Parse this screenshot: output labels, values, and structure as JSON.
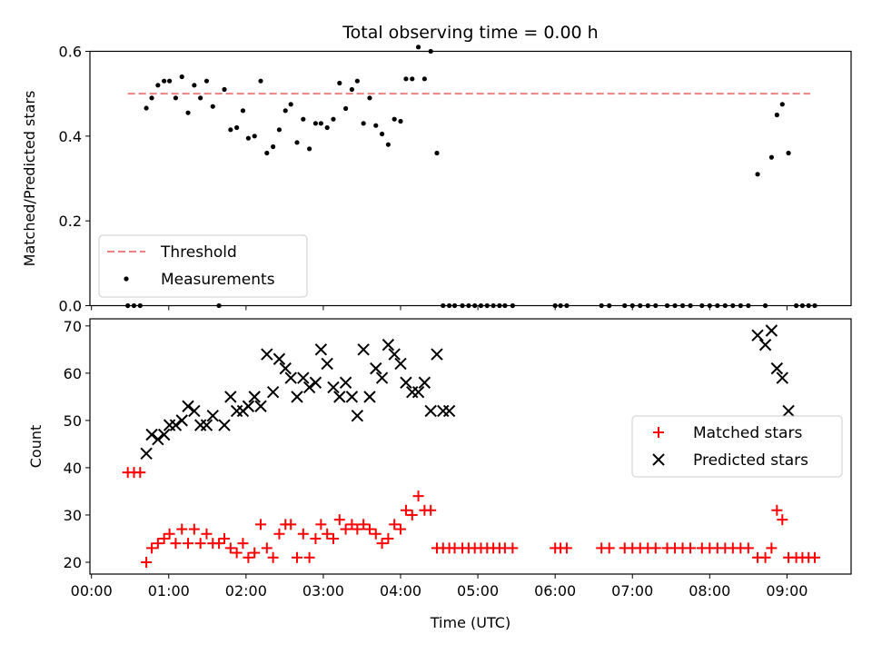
{
  "title": "Total observing time = 0.00 h",
  "x_axis": {
    "label": "Time (UTC)",
    "ticks": [
      {
        "v": 0,
        "label": "00:00"
      },
      {
        "v": 1,
        "label": "01:00"
      },
      {
        "v": 2,
        "label": "02:00"
      },
      {
        "v": 3,
        "label": "03:00"
      },
      {
        "v": 4,
        "label": "04:00"
      },
      {
        "v": 5,
        "label": "05:00"
      },
      {
        "v": 6,
        "label": "06:00"
      },
      {
        "v": 7,
        "label": "07:00"
      },
      {
        "v": 8,
        "label": "08:00"
      },
      {
        "v": 9,
        "label": "09:00"
      }
    ],
    "range_hours": [
      -0.02,
      9.83
    ]
  },
  "chart_data": [
    {
      "type": "scatter",
      "ylabel": "Matched/Predicted stars",
      "ylim": [
        0.0,
        0.6
      ],
      "yticks": [
        {
          "v": 0.0,
          "label": "0.0"
        },
        {
          "v": 0.2,
          "label": "0.2"
        },
        {
          "v": 0.4,
          "label": "0.4"
        },
        {
          "v": 0.6,
          "label": "0.6"
        }
      ],
      "legend_position": "bottom-left",
      "threshold": {
        "name": "Threshold",
        "y": 0.5,
        "x": [
          0.47,
          9.3
        ],
        "color": "#f08080"
      },
      "series": [
        {
          "name": "Measurements",
          "color": "#000000",
          "x": [
            0.47,
            0.55,
            0.63,
            0.71,
            0.78,
            0.86,
            0.94,
            1.01,
            1.09,
            1.17,
            1.25,
            1.33,
            1.41,
            1.49,
            1.57,
            1.65,
            1.72,
            1.8,
            1.88,
            1.96,
            2.03,
            2.11,
            2.19,
            2.27,
            2.35,
            2.43,
            2.51,
            2.58,
            2.66,
            2.74,
            2.82,
            2.9,
            2.97,
            3.05,
            3.13,
            3.21,
            3.29,
            3.37,
            3.44,
            3.52,
            3.6,
            3.68,
            3.76,
            3.84,
            3.92,
            4.0,
            4.07,
            4.15,
            4.23,
            4.31,
            4.39,
            4.47,
            4.55,
            4.63,
            4.7,
            4.8,
            4.88,
            4.96,
            5.04,
            5.12,
            5.2,
            5.28,
            5.35,
            5.45,
            6.0,
            6.07,
            6.15,
            6.6,
            6.7,
            6.9,
            7.0,
            7.1,
            7.2,
            7.3,
            7.45,
            7.55,
            7.65,
            7.75,
            7.9,
            8.0,
            8.1,
            8.2,
            8.3,
            8.4,
            8.5,
            8.62,
            8.72,
            8.8,
            8.87,
            8.94,
            9.02,
            9.12,
            9.2,
            9.28,
            9.36
          ],
          "y": [
            0.0,
            0.0,
            0.0,
            0.466,
            0.49,
            0.52,
            0.53,
            0.53,
            0.49,
            0.54,
            0.455,
            0.52,
            0.49,
            0.53,
            0.47,
            0.0,
            0.51,
            0.415,
            0.42,
            0.46,
            0.395,
            0.4,
            0.53,
            0.36,
            0.375,
            0.415,
            0.46,
            0.475,
            0.385,
            0.44,
            0.37,
            0.43,
            0.43,
            0.42,
            0.44,
            0.525,
            0.465,
            0.51,
            0.53,
            0.43,
            0.49,
            0.425,
            0.405,
            0.38,
            0.44,
            0.435,
            0.535,
            0.535,
            0.61,
            0.535,
            0.6,
            0.36,
            0.0,
            0.0,
            0.0,
            0.0,
            0.0,
            0.0,
            0.0,
            0.0,
            0.0,
            0.0,
            0.0,
            0.0,
            0.0,
            0.0,
            0.0,
            0.0,
            0.0,
            0.0,
            0.0,
            0.0,
            0.0,
            0.0,
            0.0,
            0.0,
            0.0,
            0.0,
            0.0,
            0.0,
            0.0,
            0.0,
            0.0,
            0.0,
            0.0,
            0.31,
            0.0,
            0.35,
            0.45,
            0.475,
            0.36,
            0.0,
            0.0,
            0.0,
            0.0
          ]
        }
      ]
    },
    {
      "type": "scatter",
      "ylabel": "Count",
      "ylim": [
        17.5,
        71.5
      ],
      "yticks": [
        {
          "v": 20,
          "label": "20"
        },
        {
          "v": 30,
          "label": "30"
        },
        {
          "v": 40,
          "label": "40"
        },
        {
          "v": 50,
          "label": "50"
        },
        {
          "v": 60,
          "label": "60"
        },
        {
          "v": 70,
          "label": "70"
        }
      ],
      "legend_position": "center-right",
      "series": [
        {
          "name": "Matched stars",
          "marker": "plus",
          "color": "#ff0000",
          "x": [
            0.47,
            0.55,
            0.63,
            0.71,
            0.78,
            0.86,
            0.94,
            1.01,
            1.09,
            1.17,
            1.25,
            1.33,
            1.41,
            1.49,
            1.57,
            1.65,
            1.72,
            1.8,
            1.88,
            1.96,
            2.03,
            2.11,
            2.19,
            2.27,
            2.35,
            2.43,
            2.51,
            2.58,
            2.66,
            2.74,
            2.82,
            2.9,
            2.97,
            3.05,
            3.13,
            3.21,
            3.29,
            3.37,
            3.44,
            3.52,
            3.6,
            3.68,
            3.76,
            3.84,
            3.92,
            4.0,
            4.07,
            4.15,
            4.23,
            4.31,
            4.39,
            4.47,
            4.55,
            4.63,
            4.7,
            4.8,
            4.88,
            4.96,
            5.04,
            5.12,
            5.2,
            5.28,
            5.35,
            5.45,
            6.0,
            6.07,
            6.15,
            6.6,
            6.7,
            6.9,
            7.0,
            7.1,
            7.2,
            7.3,
            7.45,
            7.55,
            7.65,
            7.75,
            7.9,
            8.0,
            8.1,
            8.2,
            8.3,
            8.4,
            8.5,
            8.62,
            8.72,
            8.8,
            8.87,
            8.94,
            9.02,
            9.12,
            9.2,
            9.28,
            9.36
          ],
          "y": [
            39,
            39,
            39,
            20,
            23,
            24,
            25,
            26,
            24,
            27,
            24,
            27,
            24,
            26,
            24,
            24,
            25,
            23,
            22,
            24,
            21,
            22,
            28,
            23,
            21,
            26,
            28,
            28,
            21,
            26,
            21,
            25,
            28,
            26,
            25,
            29,
            27,
            28,
            27,
            28,
            27,
            26,
            24,
            25,
            28,
            27,
            31,
            30,
            34,
            31,
            31,
            23,
            23,
            23,
            23,
            23,
            23,
            23,
            23,
            23,
            23,
            23,
            23,
            23,
            23,
            23,
            23,
            23,
            23,
            23,
            23,
            23,
            23,
            23,
            23,
            23,
            23,
            23,
            23,
            23,
            23,
            23,
            23,
            23,
            23,
            21,
            21,
            23,
            31,
            29,
            21,
            21,
            21,
            21,
            21
          ]
        },
        {
          "name": "Predicted stars",
          "marker": "x",
          "color": "#000000",
          "x": [
            0.71,
            0.78,
            0.86,
            0.94,
            1.01,
            1.09,
            1.17,
            1.25,
            1.33,
            1.41,
            1.49,
            1.57,
            1.72,
            1.8,
            1.88,
            1.96,
            2.03,
            2.11,
            2.19,
            2.27,
            2.35,
            2.43,
            2.51,
            2.58,
            2.66,
            2.74,
            2.82,
            2.9,
            2.97,
            3.05,
            3.13,
            3.21,
            3.29,
            3.37,
            3.44,
            3.52,
            3.6,
            3.68,
            3.76,
            3.84,
            3.92,
            4.0,
            4.07,
            4.15,
            4.23,
            4.31,
            4.39,
            4.47,
            4.55,
            4.63,
            8.62,
            8.72,
            8.8,
            8.87,
            8.94,
            9.02
          ],
          "y": [
            43,
            47,
            46,
            47,
            49,
            49,
            50,
            53,
            52,
            49,
            49,
            51,
            49,
            55,
            52,
            52,
            53,
            55,
            53,
            64,
            56,
            63,
            61,
            59,
            55,
            59,
            57,
            58,
            65,
            62,
            57,
            55,
            58,
            55,
            51,
            65,
            55,
            61,
            59,
            66,
            64,
            62,
            58,
            56,
            56,
            58,
            52,
            64,
            52,
            52,
            68,
            66,
            69,
            61,
            59,
            52
          ]
        }
      ]
    }
  ]
}
